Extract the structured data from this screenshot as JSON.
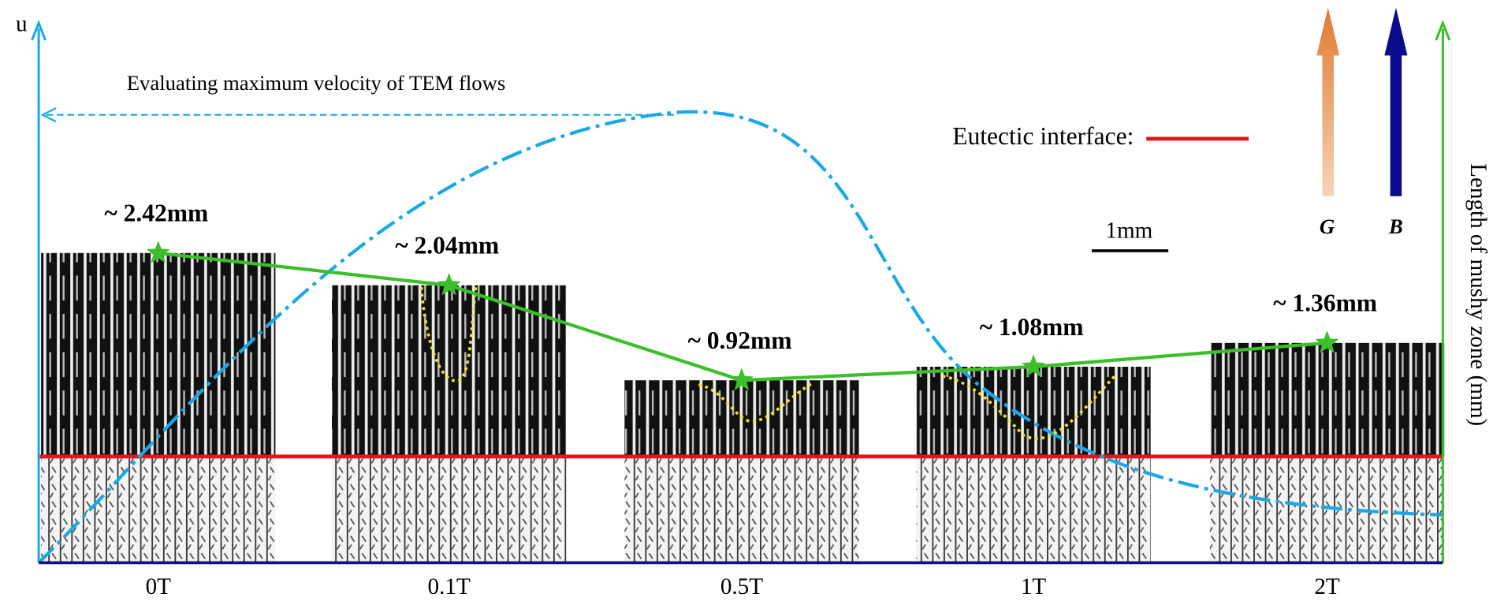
{
  "chart_data": {
    "type": "line",
    "categories": [
      "0T",
      "0.1T",
      "0.5T",
      "1T",
      "2T"
    ],
    "series": [
      {
        "color": "#3cbf2a",
        "axis": "y2",
        "values": [
          2.42,
          2.04,
          0.92,
          1.08,
          1.36
        ],
        "value_labels": [
          "~ 2.42mm",
          "~ 2.04mm",
          "~ 0.92mm",
          "~ 1.08mm",
          "~ 1.36mm"
        ]
      }
    ],
    "y2lim": [
      -1.23,
      5.12
    ],
    "y_label": "u",
    "y2_label": "Length of mushy zone (mm)",
    "annotation": "Evaluating maximum velocity of TEM flows",
    "interface_label": "Eutectic interface:",
    "scale_bar": "1mm",
    "arrow_labels": [
      "G",
      "B"
    ]
  }
}
